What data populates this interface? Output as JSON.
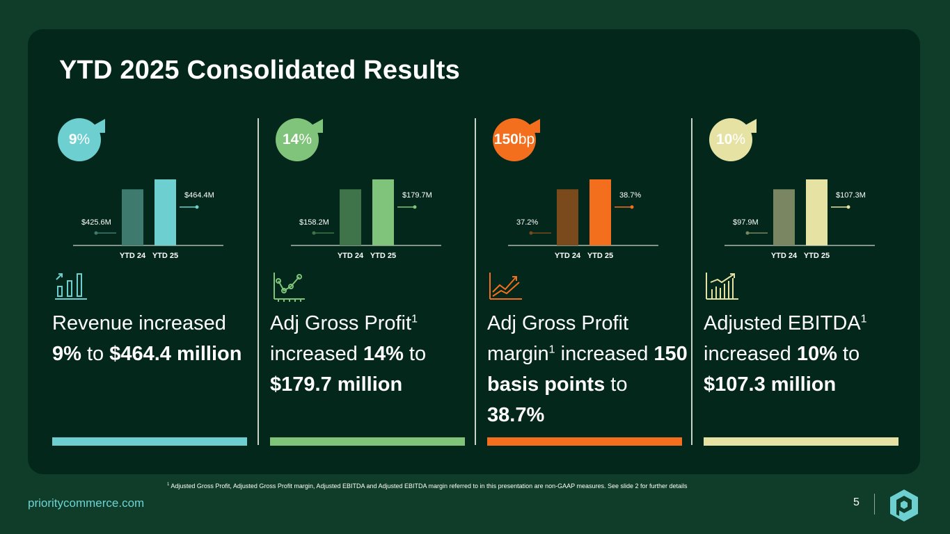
{
  "title": "YTD 2025 Consolidated Results",
  "metrics": [
    {
      "badge_num": "9",
      "badge_unit": "%",
      "badge_color": "#6ecfd0",
      "bar_prev_color": "#3e7b6e",
      "bar_curr_color": "#6ecfd0",
      "icon": "bar-growth-icon",
      "chart_data": {
        "type": "bar",
        "categories": [
          "YTD 24",
          "YTD 25"
        ],
        "values": [
          425.6,
          464.4
        ],
        "data_labels": [
          "$425.6M",
          "$464.4M"
        ]
      },
      "desc": {
        "p1": "Revenue increased ",
        "b1": "9%",
        "p2": " to ",
        "b2": "$464.4 million"
      }
    },
    {
      "badge_num": "14",
      "badge_unit": "%",
      "badge_color": "#7fc47a",
      "bar_prev_color": "#3f744a",
      "bar_curr_color": "#7fc47a",
      "icon": "line-chart-icon",
      "chart_data": {
        "type": "bar",
        "categories": [
          "YTD 24",
          "YTD 25"
        ],
        "values": [
          158.2,
          179.7
        ],
        "data_labels": [
          "$158.2M",
          "$179.7M"
        ]
      },
      "desc": {
        "p1": "Adj Gross Profit",
        "sup": "1",
        "p2": " increased ",
        "b1": "14%",
        "p3": " to ",
        "b2": "$179.7 million"
      }
    },
    {
      "badge_num": "150",
      "badge_unit": "bp",
      "badge_color": "#f36f1d",
      "bar_prev_color": "#7a4a1c",
      "bar_curr_color": "#f36f1d",
      "icon": "trend-up-icon",
      "chart_data": {
        "type": "bar",
        "categories": [
          "YTD 24",
          "YTD 25"
        ],
        "values": [
          37.2,
          38.7
        ],
        "data_labels": [
          "37.2%",
          "38.7%"
        ]
      },
      "desc": {
        "p1": "Adj Gross Profit margin",
        "sup": "1",
        "p2": " increased ",
        "b1": "150 basis points",
        "p3": " to ",
        "b2": "38.7%"
      }
    },
    {
      "badge_num": "10",
      "badge_unit": "%",
      "badge_color": "#e6e2a3",
      "bar_prev_color": "#7a8662",
      "bar_curr_color": "#e6e2a3",
      "icon": "growth-bars-icon",
      "chart_data": {
        "type": "bar",
        "categories": [
          "YTD 24",
          "YTD 25"
        ],
        "values": [
          97.9,
          107.3
        ],
        "data_labels": [
          "$97.9M",
          "$107.3M"
        ]
      },
      "desc": {
        "p1": "Adjusted EBITDA",
        "sup": "1",
        "p2": " increased ",
        "b1": "10%",
        "p3": " to ",
        "b2": "$107.3 million"
      }
    }
  ],
  "footnote_sup": "1",
  "footnote": " Adjusted Gross Profit, Adjusted Gross Profit margin, Adjusted EBITDA and Adjusted EBITDA margin referred to in this presentation are non-GAAP measures. See slide 2 for further details",
  "site": "prioritycommerce.com",
  "page_number": "5"
}
